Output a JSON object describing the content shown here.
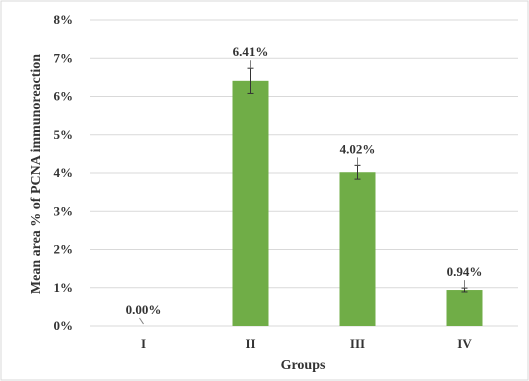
{
  "chart_data": {
    "type": "bar",
    "title": "",
    "xlabel": "Groups",
    "ylabel": "Mean area % of  PCNA immunoreaction",
    "categories": [
      "I",
      "II",
      "III",
      "IV"
    ],
    "values": [
      0.0,
      6.41,
      4.02,
      0.94
    ],
    "errors": [
      0.0,
      0.33,
      0.18,
      0.05
    ],
    "data_labels": [
      "0.00%",
      "6.41%",
      "4.02%",
      "0.94%"
    ],
    "ylim": [
      0,
      8
    ],
    "yticks": [
      0,
      1,
      2,
      3,
      4,
      5,
      6,
      7,
      8
    ],
    "ytick_labels": [
      "0%",
      "1%",
      "2%",
      "3%",
      "4%",
      "5%",
      "6%",
      "7%",
      "8%"
    ],
    "grid": true,
    "legend": "none",
    "colors": {
      "bar": "#70ad47",
      "grid": "#d9d9d9",
      "text": "#333333",
      "error": "#333333",
      "frame": "#d9d9d9"
    }
  }
}
